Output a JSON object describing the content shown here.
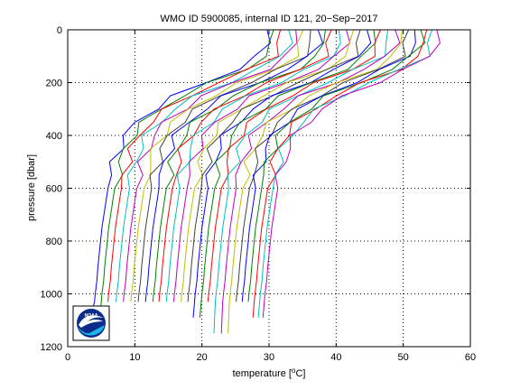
{
  "chart_data": {
    "type": "line",
    "title": "WMO ID 5900085, internal ID 121, 20−Sep−2017",
    "xlabel_prefix": "temperature [",
    "xlabel_sup": "o",
    "xlabel_suffix": "C]",
    "ylabel": "pressure [dbar]",
    "xlim": [
      0,
      60
    ],
    "ylim": [
      1200,
      0
    ],
    "y_reversed": true,
    "xticks": [
      0,
      10,
      20,
      30,
      40,
      50,
      60
    ],
    "yticks": [
      0,
      200,
      400,
      600,
      800,
      1000,
      1200
    ],
    "grid": true,
    "logo": "NOAA",
    "colors": [
      "#0000ff",
      "#008000",
      "#ff0000",
      "#00bfbf",
      "#bf00bf",
      "#bfbf00",
      "#404040"
    ],
    "profile_shape": {
      "pressure": [
        0,
        50,
        100,
        150,
        200,
        250,
        300,
        350,
        400,
        450,
        500,
        550,
        600,
        650,
        700,
        750,
        800,
        850,
        900,
        950,
        1000,
        1030
      ],
      "offset": [
        25.7,
        25.6,
        24.6,
        21.2,
        16.5,
        12.0,
        8.8,
        6.3,
        4.6,
        3.6,
        2.9,
        2.4,
        2.0,
        1.7,
        1.4,
        1.1,
        0.9,
        0.7,
        0.5,
        0.35,
        0.1,
        0.0
      ]
    },
    "series_base_temps": [
      4.0,
      5.0,
      6.0,
      7.2,
      8.3,
      9.4,
      10.5,
      11.6,
      12.7,
      13.6,
      14.7,
      15.8,
      16.9,
      17.9,
      18.9,
      19.9,
      20.9,
      22.0,
      23.1,
      24.1,
      25.1,
      26.0,
      26.9,
      27.8,
      28.6,
      29.3
    ],
    "series_max_pressure": [
      1050,
      1090,
      1030,
      1030,
      1030,
      1030,
      1030,
      1030,
      1030,
      1030,
      1030,
      1030,
      1030,
      1030,
      1090,
      1090,
      1030,
      1150,
      1150,
      1150,
      1030,
      1030,
      1030,
      1090,
      1090,
      1090
    ]
  }
}
